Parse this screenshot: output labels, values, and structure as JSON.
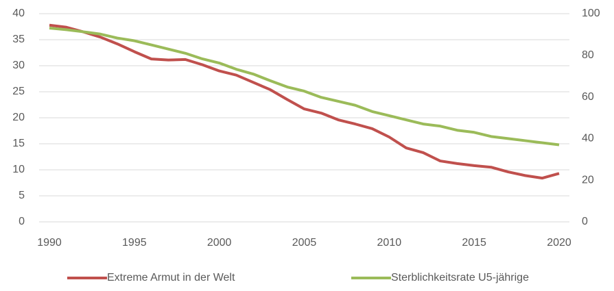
{
  "chart_data": {
    "type": "line",
    "x": [
      1990,
      1991,
      1992,
      1993,
      1994,
      1995,
      1996,
      1997,
      1998,
      1999,
      2000,
      2001,
      2002,
      2003,
      2004,
      2005,
      2006,
      2007,
      2008,
      2009,
      2010,
      2011,
      2012,
      2013,
      2014,
      2015,
      2016,
      2017,
      2018,
      2019,
      2020
    ],
    "series": [
      {
        "name": "Extreme Armut in der Welt",
        "color": "#c0504d",
        "values": [
          37.8,
          37.4,
          36.5,
          35.5,
          34.2,
          32.7,
          31.3,
          31.1,
          31.2,
          30.2,
          29.0,
          28.2,
          26.8,
          25.4,
          23.5,
          21.7,
          20.9,
          19.6,
          18.8,
          17.9,
          16.3,
          14.2,
          13.3,
          11.7,
          11.2,
          10.8,
          10.5,
          9.6,
          8.9,
          8.4,
          9.3
        ]
      },
      {
        "name": "Sterblichkeitsrate U5-jährige",
        "color": "#9bbb59",
        "axis": "y2",
        "values": [
          93.1,
          92.3,
          91.3,
          90.2,
          88.3,
          87,
          85,
          83,
          81,
          78.3,
          76.3,
          73.3,
          71,
          67.8,
          64.8,
          62.8,
          59.8,
          57.9,
          56,
          53,
          51,
          49,
          47,
          46,
          44,
          43,
          41,
          40,
          39,
          38,
          37
        ]
      }
    ],
    "xlim": [
      1990,
      2020
    ],
    "xticks": [
      1990,
      1995,
      2000,
      2005,
      2010,
      2015,
      2020
    ],
    "ylim": [
      0,
      40
    ],
    "yticks": [
      0,
      5,
      10,
      15,
      20,
      25,
      30,
      35,
      40
    ],
    "y2lim": [
      0,
      100
    ],
    "y2ticks": [
      0,
      20,
      40,
      60,
      80,
      100
    ],
    "grid": true,
    "legend": "bottom"
  }
}
